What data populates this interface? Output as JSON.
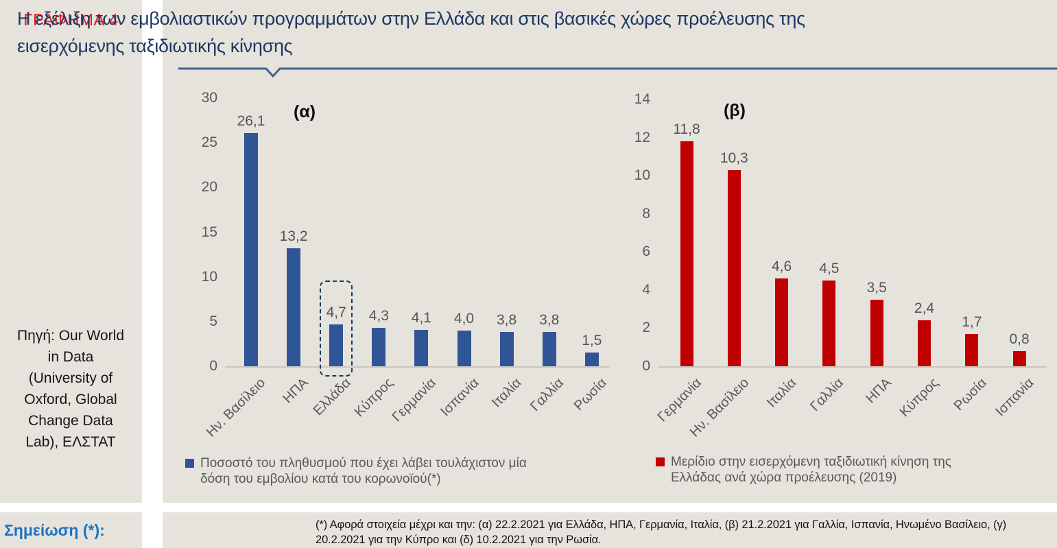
{
  "page": {
    "figure_label": "ΓΡΑΦΗΜΑ 4",
    "title_lines": [
      "Η εξέλιξη των εμβολιαστικών προγραμμάτων στην Ελλάδα και στις βασικές χώρες προέλευσης της",
      "εισερχόμενης ταξιδιωτικής κίνησης"
    ],
    "source": "Πηγή: Our World in Data (University of Oxford, Global Change Data Lab), ΕΛΣΤΑΤ",
    "note_label": "Σημείωση (*):",
    "note_lines": [
      "(*) Αφορά στοιχεία μέχρι και την: (α) 22.2.2021 για Ελλάδα, ΗΠΑ, Γερμανία, Ιταλία, (β) 21.2.2021 για Γαλλία, Ισπανία, Ηνωμένο Βασίλειο, (γ)",
      "20.2.2021 για την Κύπρο και (δ) 10.2.2021 για την Ρωσία."
    ]
  },
  "colors": {
    "background_beige": "#e5e3dc",
    "figure_label_red": "#e8191c",
    "title_navy": "#1f3864",
    "divider_blue": "#44618e",
    "note_label_blue": "#1e73be",
    "bar_blue": "#2f5597",
    "bar_red": "#c00000",
    "axis_text_gray": "#595959"
  },
  "chart_data": [
    {
      "type": "bar",
      "panel_label": "(α)",
      "legend": "Ποσοστό του πληθυσμού που έχει λάβει τουλάχιστον μία δόση του εμβολίου κατά του κορωνοϊού(*)",
      "categories": [
        "Ην. Βασίλειο",
        "ΗΠΑ",
        "Ελλάδα",
        "Κύπρος",
        "Γερμανία",
        "Ισπανία",
        "Ιταλία",
        "Γαλλία",
        "Ρωσία"
      ],
      "values": [
        26.1,
        13.2,
        4.7,
        4.3,
        4.1,
        4.0,
        3.8,
        3.8,
        1.5
      ],
      "value_labels": [
        "26,1",
        "13,2",
        "4,7",
        "4,3",
        "4,1",
        "4,0",
        "3,8",
        "3,8",
        "1,5"
      ],
      "ylim": [
        0,
        30
      ],
      "yticks": [
        0,
        5,
        10,
        15,
        20,
        25,
        30
      ],
      "bar_color": "#2f5597",
      "highlighted_category": "Ελλάδα",
      "grid": false,
      "legend_position": "bottom"
    },
    {
      "type": "bar",
      "panel_label": "(β)",
      "legend": "Μερίδιο στην εισερχόμενη ταξιδιωτική κίνηση της Ελλάδας ανά χώρα προέλευσης (2019)",
      "categories": [
        "Γερμανία",
        "Ην. Βασίλειο",
        "Ιταλία",
        "Γαλλία",
        "ΗΠΑ",
        "Κύπρος",
        "Ρωσία",
        "Ισπανία"
      ],
      "values": [
        11.8,
        10.3,
        4.6,
        4.5,
        3.5,
        2.4,
        1.7,
        0.8
      ],
      "value_labels": [
        "11,8",
        "10,3",
        "4,6",
        "4,5",
        "3,5",
        "2,4",
        "1,7",
        "0,8"
      ],
      "ylim": [
        0,
        14
      ],
      "yticks": [
        0,
        2,
        4,
        6,
        8,
        10,
        12,
        14
      ],
      "bar_color": "#c00000",
      "grid": false,
      "legend_position": "bottom"
    }
  ]
}
